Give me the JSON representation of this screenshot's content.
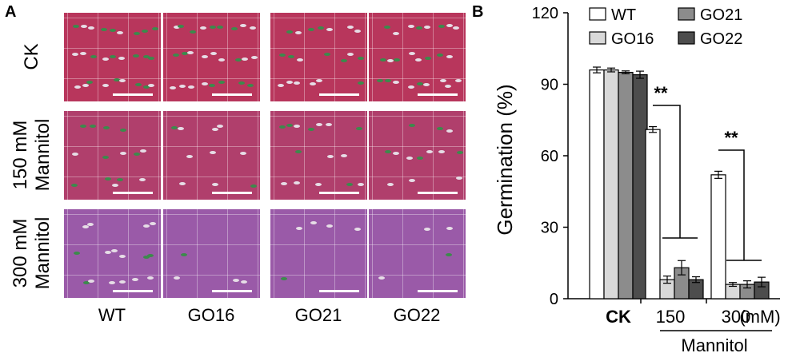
{
  "panel_a": {
    "letter": "A",
    "row_labels": [
      {
        "lines": [
          "CK"
        ]
      },
      {
        "lines": [
          "150 mM",
          "Mannitol"
        ]
      },
      {
        "lines": [
          "300 mM",
          "Mannitol"
        ]
      }
    ],
    "col_labels": [
      "WT",
      "GO16",
      "GO21",
      "GO22"
    ],
    "colors": {
      "ck": "#b8365c",
      "m150": "#b03f6c",
      "m300": "#9a5aa8",
      "seedling_green": "#3c8a4c",
      "seedling_white": "#e6dde6"
    },
    "seedling_density": [
      [
        1.0,
        0.95,
        0.75,
        0.8
      ],
      [
        0.6,
        0.5,
        0.5,
        0.45
      ],
      [
        0.45,
        0.15,
        0.2,
        0.05
      ]
    ]
  },
  "chart_data": {
    "type": "bar",
    "panel_letter": "B",
    "categories": [
      "CK",
      "150",
      "300"
    ],
    "category_unit": "(mM)",
    "group_label": "Mannitol",
    "ylabel": "Germination (%)",
    "ylim": [
      0,
      120
    ],
    "yticks": [
      0,
      30,
      60,
      90,
      120
    ],
    "series": [
      {
        "name": "WT",
        "values": [
          96,
          71,
          52
        ],
        "errors": [
          1.2,
          1.2,
          1.5
        ],
        "color": "#ffffff"
      },
      {
        "name": "GO16",
        "values": [
          96,
          8,
          6
        ],
        "errors": [
          0.8,
          1.5,
          0.8
        ],
        "color": "#d9d9d9"
      },
      {
        "name": "GO21",
        "values": [
          95,
          13,
          6
        ],
        "errors": [
          0.6,
          3,
          1.5
        ],
        "color": "#8c8c8c"
      },
      {
        "name": "GO22",
        "values": [
          94,
          8,
          7
        ],
        "errors": [
          1.5,
          1.2,
          2
        ],
        "color": "#4d4d4d"
      }
    ],
    "significance": [
      {
        "category": "150",
        "text": "**"
      },
      {
        "category": "300",
        "text": "**"
      }
    ],
    "legend_position": "top"
  }
}
